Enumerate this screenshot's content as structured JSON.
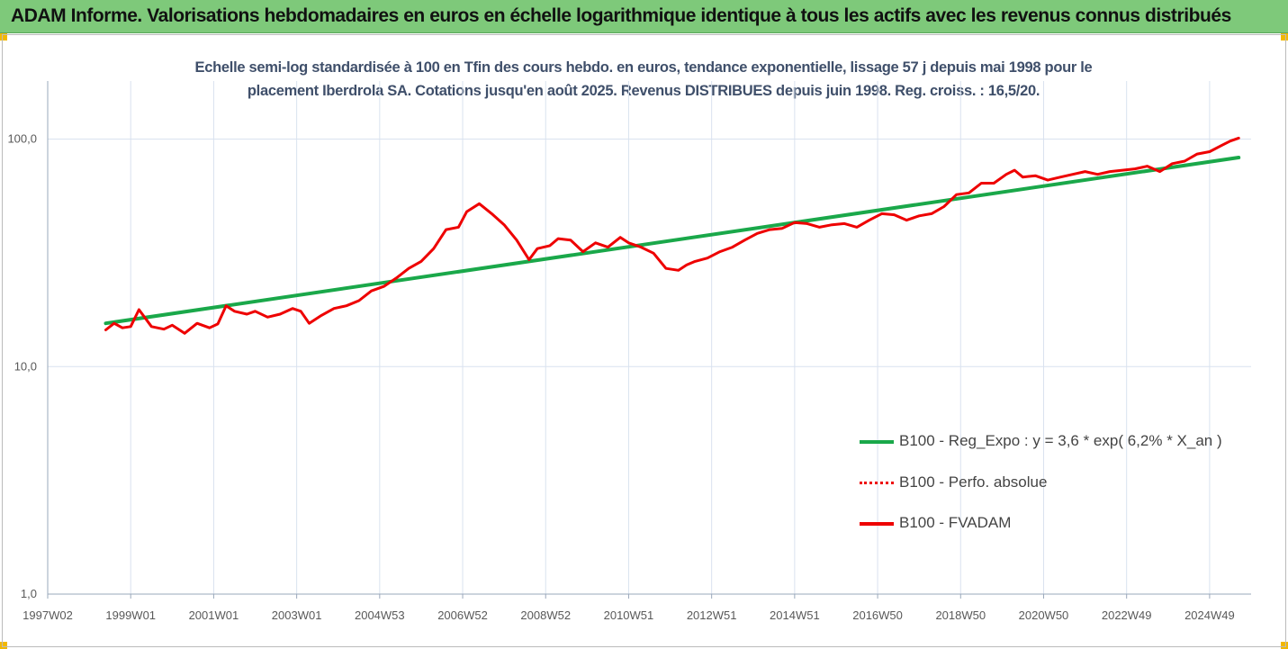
{
  "header": {
    "title": "ADAM Informe. Valorisations hebdomadaires en euros en échelle logarithmique identique à tous les actifs avec les revenus connus distribués"
  },
  "colors": {
    "banner": "#7ec97a",
    "trend": "#1aa84a",
    "series": "#ee0000",
    "grid": "#d9e2ef",
    "subtitle": "#3f4f6a"
  },
  "chart_data": {
    "type": "line",
    "subtitle_line1": "Echelle semi-log standardisée à 100 en Tfin des cours hebdo. en euros, tendance exponentielle, lissage 57 j depuis mai 1998 pour le",
    "subtitle_line2": "placement Iberdrola SA. Cotations jusqu'en août 2025. Revenus DISTRIBUES depuis juin 1998. Reg. croiss. : 16,5/20.",
    "y_scale": "log",
    "ylim": [
      1,
      180
    ],
    "y_ticks": [
      {
        "value": 1,
        "label": "1,0"
      },
      {
        "value": 10,
        "label": "10,0"
      },
      {
        "value": 100,
        "label": "100,0"
      }
    ],
    "xlim": [
      1997.0,
      2026.0
    ],
    "x_ticks": [
      {
        "value": 1997.0,
        "label": "1997W02"
      },
      {
        "value": 1999.0,
        "label": "1999W01"
      },
      {
        "value": 2001.0,
        "label": "2001W01"
      },
      {
        "value": 2003.0,
        "label": "2003W01"
      },
      {
        "value": 2005.0,
        "label": "2004W53"
      },
      {
        "value": 2007.0,
        "label": "2006W52"
      },
      {
        "value": 2009.0,
        "label": "2008W52"
      },
      {
        "value": 2011.0,
        "label": "2010W51"
      },
      {
        "value": 2013.0,
        "label": "2012W51"
      },
      {
        "value": 2015.0,
        "label": "2014W51"
      },
      {
        "value": 2017.0,
        "label": "2016W50"
      },
      {
        "value": 2019.0,
        "label": "2018W50"
      },
      {
        "value": 2021.0,
        "label": "2020W50"
      },
      {
        "value": 2023.0,
        "label": "2022W49"
      },
      {
        "value": 2025.0,
        "label": "2024W49"
      }
    ],
    "vertical_grid": true,
    "legend_position": "bottom-right",
    "series": [
      {
        "name": "B100 - Reg_Expo : y = 3,6 * exp( 6,2% *  X_an )",
        "style": "solid",
        "color": "#1aa84a",
        "x": [
          1998.4,
          2025.7
        ],
        "y": [
          15.5,
          83
        ]
      },
      {
        "name": "B100 - Perfo. absolue",
        "style": "dotted",
        "color": "#ee0000",
        "x": [],
        "y": []
      },
      {
        "name": "B100 - FVADAM",
        "style": "solid",
        "color": "#ee0000",
        "x": [
          1998.4,
          1998.6,
          1998.8,
          1999.0,
          1999.2,
          1999.5,
          1999.8,
          2000.0,
          2000.3,
          2000.6,
          2000.9,
          2001.1,
          2001.3,
          2001.5,
          2001.8,
          2002.0,
          2002.3,
          2002.6,
          2002.9,
          2003.1,
          2003.3,
          2003.6,
          2003.9,
          2004.2,
          2004.5,
          2004.8,
          2005.1,
          2005.4,
          2005.7,
          2006.0,
          2006.3,
          2006.6,
          2006.9,
          2007.1,
          2007.4,
          2007.7,
          2008.0,
          2008.3,
          2008.6,
          2008.8,
          2009.1,
          2009.3,
          2009.6,
          2009.9,
          2010.2,
          2010.5,
          2010.8,
          2011.0,
          2011.3,
          2011.6,
          2011.9,
          2012.2,
          2012.4,
          2012.6,
          2012.9,
          2013.2,
          2013.5,
          2013.8,
          2014.1,
          2014.4,
          2014.7,
          2015.0,
          2015.3,
          2015.6,
          2015.9,
          2016.2,
          2016.5,
          2016.8,
          2017.1,
          2017.4,
          2017.7,
          2018.0,
          2018.3,
          2018.6,
          2018.9,
          2019.2,
          2019.5,
          2019.8,
          2020.1,
          2020.3,
          2020.5,
          2020.8,
          2021.1,
          2021.4,
          2021.7,
          2022.0,
          2022.3,
          2022.6,
          2022.9,
          2023.2,
          2023.5,
          2023.8,
          2024.1,
          2024.4,
          2024.7,
          2025.0,
          2025.3,
          2025.5,
          2025.7
        ],
        "y": [
          14.5,
          15.5,
          14.8,
          15.0,
          17.8,
          15.0,
          14.6,
          15.2,
          14.0,
          15.5,
          14.8,
          15.4,
          18.5,
          17.5,
          17.0,
          17.5,
          16.5,
          17.0,
          18.0,
          17.5,
          15.5,
          16.8,
          18.0,
          18.5,
          19.5,
          21.5,
          22.5,
          24.5,
          27.0,
          29.0,
          33.0,
          40.0,
          41.0,
          48.0,
          52.0,
          47.0,
          42.0,
          36.0,
          29.5,
          33.0,
          34.0,
          36.5,
          36.0,
          32.0,
          35.0,
          33.5,
          37.0,
          35.0,
          33.5,
          31.5,
          27.0,
          26.5,
          28.0,
          29.0,
          30.0,
          32.0,
          33.5,
          36.0,
          38.5,
          40.0,
          40.5,
          43.0,
          42.5,
          41.0,
          42.0,
          42.5,
          41.0,
          44.0,
          47.0,
          46.5,
          44.0,
          46.0,
          47.0,
          50.5,
          57.0,
          58.0,
          64.0,
          64.0,
          70.0,
          73.0,
          68.0,
          69.0,
          66.0,
          68.0,
          70.0,
          72.0,
          70.0,
          72.0,
          73.0,
          74.0,
          76.0,
          72.0,
          78.0,
          80.0,
          86.0,
          88.0,
          94.0,
          98.0,
          101.0
        ]
      }
    ]
  }
}
